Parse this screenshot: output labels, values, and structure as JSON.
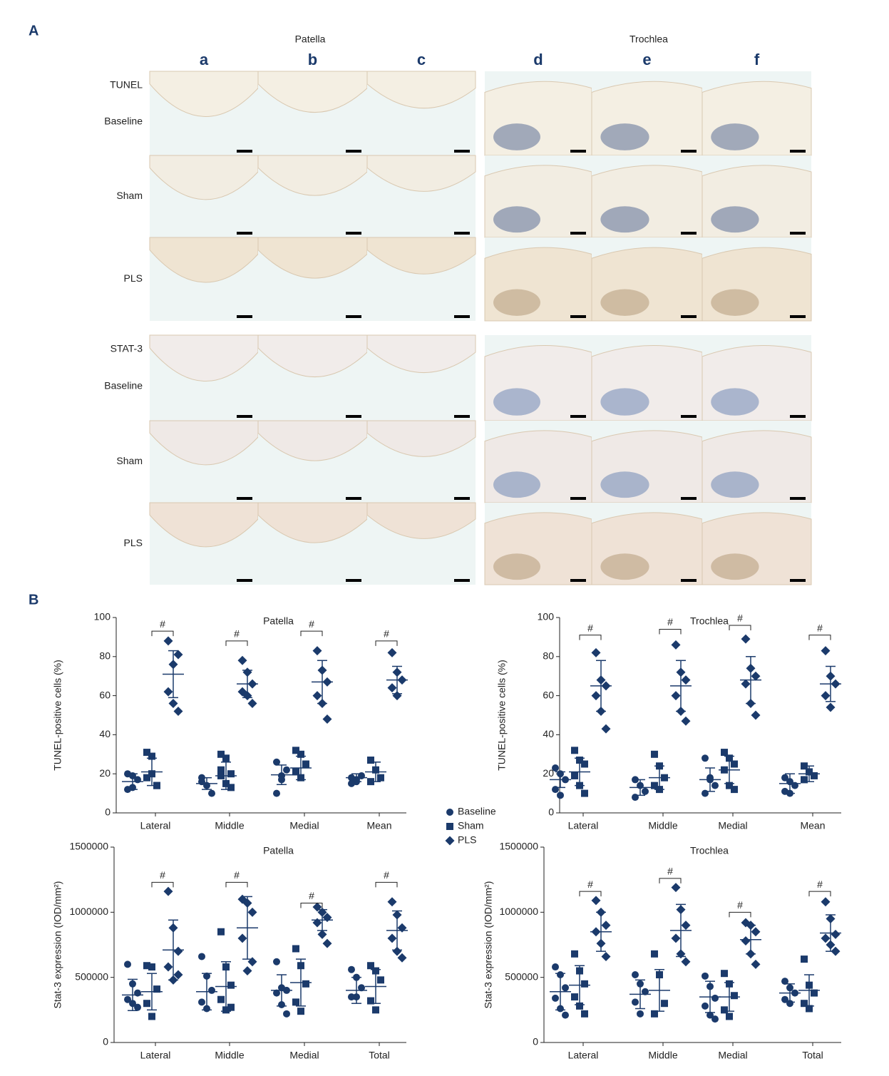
{
  "panel_a": {
    "label": "A",
    "groups": [
      {
        "title": "Patella",
        "columns": [
          "a",
          "b",
          "c"
        ]
      },
      {
        "title": "Trochlea",
        "columns": [
          "d",
          "e",
          "f"
        ]
      }
    ],
    "stains": [
      {
        "name": "TUNEL",
        "rows": [
          "Baseline",
          "Sham",
          "PLS"
        ]
      },
      {
        "name": "STAT-3",
        "rows": [
          "Baseline",
          "Sham",
          "PLS"
        ]
      }
    ]
  },
  "panel_b": {
    "label": "B"
  },
  "chart_data": [
    {
      "type": "dot",
      "title": "Patella",
      "y_label": "TUNEL-positive cells (%)",
      "categories": [
        "Lateral",
        "Middle",
        "Medial",
        "Mean"
      ],
      "ylim": [
        0,
        100
      ],
      "yticks": [
        0,
        20,
        40,
        60,
        80,
        100
      ],
      "series": [
        {
          "name": "Baseline",
          "color": "#1b3a6b",
          "marker": "circle",
          "values": [
            [
              20,
              13,
              17,
              12,
              19
            ],
            [
              18,
              14,
              10,
              16
            ],
            [
              26,
              17,
              22,
              10,
              19
            ],
            [
              18,
              16,
              19,
              15,
              17
            ]
          ],
          "mean": [
            16,
            15,
            19.5,
            18
          ],
          "sd": [
            4,
            3,
            5,
            2
          ]
        },
        {
          "name": "Sham",
          "color": "#1b3a6b",
          "marker": "square",
          "values": [
            [
              31,
              29,
              14,
              18,
              20,
              14
            ],
            [
              30,
              28,
              20,
              22,
              15,
              13,
              19
            ],
            [
              32,
              30,
              25,
              21,
              18
            ],
            [
              27,
              22,
              18,
              16
            ]
          ],
          "mean": [
            21,
            19,
            23,
            21
          ],
          "sd": [
            7,
            7,
            6,
            5
          ]
        },
        {
          "name": "PLS",
          "color": "#1b3a6b",
          "marker": "diamond",
          "values": [
            [
              88,
              76,
              81,
              62,
              56,
              52
            ],
            [
              78,
              72,
              66,
              62,
              60,
              56
            ],
            [
              83,
              73,
              67,
              60,
              56,
              48
            ],
            [
              82,
              72,
              68,
              64,
              60
            ]
          ],
          "mean": [
            71,
            66,
            67,
            68
          ],
          "sd": [
            12,
            7,
            11,
            7
          ]
        }
      ],
      "significance": [
        {
          "category": "Lateral",
          "value": 93,
          "label": "#"
        },
        {
          "category": "Middle",
          "value": 88,
          "label": "#"
        },
        {
          "category": "Medial",
          "value": 93,
          "label": "#"
        },
        {
          "category": "Mean",
          "value": 88,
          "label": "#"
        }
      ]
    },
    {
      "type": "dot",
      "title": "Trochlea",
      "y_label": "TUNEL-positive cells (%)",
      "categories": [
        "Lateral",
        "Middle",
        "Medial",
        "Mean"
      ],
      "ylim": [
        0,
        100
      ],
      "yticks": [
        0,
        20,
        40,
        60,
        80,
        100
      ],
      "series": [
        {
          "name": "Baseline",
          "color": "#1b3a6b",
          "marker": "circle",
          "values": [
            [
              23,
              20,
              17,
              12,
              9
            ],
            [
              17,
              14,
              11,
              8
            ],
            [
              28,
              18,
              14,
              10,
              17
            ],
            [
              18,
              16,
              14,
              11,
              10
            ]
          ],
          "mean": [
            17,
            13,
            17,
            15
          ],
          "sd": [
            4,
            4,
            6,
            5
          ]
        },
        {
          "name": "Sham",
          "color": "#1b3a6b",
          "marker": "square",
          "values": [
            [
              32,
              27,
              25,
              19,
              14,
              10
            ],
            [
              30,
              24,
              18,
              14,
              12
            ],
            [
              31,
              28,
              25,
              22,
              14,
              12
            ],
            [
              24,
              21,
              19,
              17
            ]
          ],
          "mean": [
            21,
            18,
            22,
            20
          ],
          "sd": [
            7,
            6,
            7,
            4
          ]
        },
        {
          "name": "PLS",
          "color": "#1b3a6b",
          "marker": "diamond",
          "values": [
            [
              82,
              68,
              65,
              60,
              52,
              43
            ],
            [
              86,
              72,
              68,
              60,
              52,
              47
            ],
            [
              89,
              74,
              70,
              66,
              56,
              50
            ],
            [
              83,
              70,
              66,
              60,
              54
            ]
          ],
          "mean": [
            65,
            65,
            68,
            66
          ],
          "sd": [
            13,
            13,
            12,
            9
          ]
        }
      ],
      "significance": [
        {
          "category": "Lateral",
          "value": 91,
          "label": "#"
        },
        {
          "category": "Middle",
          "value": 94,
          "label": "#"
        },
        {
          "category": "Medial",
          "value": 96,
          "label": "#"
        },
        {
          "category": "Mean",
          "value": 91,
          "label": "#"
        }
      ]
    },
    {
      "type": "dot",
      "title": "Patella",
      "y_label": "Stat-3 expression (IOD/mm²)",
      "categories": [
        "Lateral",
        "Middle",
        "Medial",
        "Total"
      ],
      "ylim": [
        0,
        1500000
      ],
      "yticks": [
        0,
        500000,
        1000000,
        1500000
      ],
      "series": [
        {
          "name": "Baseline",
          "color": "#1b3a6b",
          "marker": "circle",
          "values": [
            [
              600000,
              450000,
              380000,
              330000,
              300000,
              270000
            ],
            [
              660000,
              510000,
              400000,
              310000,
              260000
            ],
            [
              620000,
              420000,
              400000,
              380000,
              290000,
              220000
            ],
            [
              560000,
              500000,
              420000,
              350000,
              350000
            ]
          ],
          "mean": [
            365000,
            390000,
            400000,
            400000
          ],
          "sd": [
            120000,
            140000,
            120000,
            100000
          ]
        },
        {
          "name": "Sham",
          "color": "#1b3a6b",
          "marker": "square",
          "values": [
            [
              590000,
              580000,
              410000,
              300000,
              200000
            ],
            [
              850000,
              580000,
              440000,
              330000,
              250000,
              270000
            ],
            [
              720000,
              590000,
              450000,
              310000,
              240000
            ],
            [
              590000,
              550000,
              480000,
              320000,
              250000
            ]
          ],
          "mean": [
            390000,
            430000,
            460000,
            430000
          ],
          "sd": [
            140000,
            190000,
            180000,
            130000
          ]
        },
        {
          "name": "PLS",
          "color": "#1b3a6b",
          "marker": "diamond",
          "values": [
            [
              1160000,
              880000,
              700000,
              580000,
              480000,
              520000
            ],
            [
              1100000,
              1070000,
              1000000,
              800000,
              550000,
              620000
            ],
            [
              1040000,
              1000000,
              960000,
              920000,
              830000,
              760000
            ],
            [
              1080000,
              980000,
              880000,
              800000,
              700000,
              650000
            ]
          ],
          "mean": [
            710000,
            880000,
            940000,
            860000
          ],
          "sd": [
            230000,
            240000,
            80000,
            150000
          ]
        }
      ],
      "significance": [
        {
          "category": "Lateral",
          "value": 1230000,
          "label": "#"
        },
        {
          "category": "Middle",
          "value": 1230000,
          "label": "#"
        },
        {
          "category": "Medial",
          "value": 1070000,
          "label": "#"
        },
        {
          "category": "Total",
          "value": 1230000,
          "label": "#"
        }
      ]
    },
    {
      "type": "dot",
      "title": "Trochlea",
      "y_label": "Stat-3 expression (IOD/mm²)",
      "categories": [
        "Lateral",
        "Middle",
        "Medial",
        "Total"
      ],
      "ylim": [
        0,
        1500000
      ],
      "yticks": [
        0,
        500000,
        1000000,
        1500000
      ],
      "series": [
        {
          "name": "Baseline",
          "color": "#1b3a6b",
          "marker": "circle",
          "values": [
            [
              580000,
              520000,
              420000,
              340000,
              260000,
              210000
            ],
            [
              520000,
              450000,
              390000,
              310000,
              220000
            ],
            [
              510000,
              430000,
              340000,
              280000,
              210000,
              180000
            ],
            [
              470000,
              420000,
              380000,
              330000,
              300000
            ]
          ],
          "mean": [
            390000,
            370000,
            350000,
            380000
          ],
          "sd": [
            140000,
            110000,
            120000,
            70000
          ]
        },
        {
          "name": "Sham",
          "color": "#1b3a6b",
          "marker": "square",
          "values": [
            [
              680000,
              550000,
              450000,
              350000,
              280000,
              220000
            ],
            [
              680000,
              520000,
              300000,
              220000
            ],
            [
              530000,
              450000,
              360000,
              250000,
              200000
            ],
            [
              640000,
              440000,
              380000,
              300000,
              260000
            ]
          ],
          "mean": [
            440000,
            400000,
            350000,
            400000
          ],
          "sd": [
            150000,
            160000,
            110000,
            120000
          ]
        },
        {
          "name": "PLS",
          "color": "#1b3a6b",
          "marker": "diamond",
          "values": [
            [
              1090000,
              1000000,
              900000,
              850000,
              760000,
              660000
            ],
            [
              1190000,
              1020000,
              900000,
              800000,
              680000,
              620000
            ],
            [
              920000,
              900000,
              850000,
              780000,
              680000,
              600000
            ],
            [
              1080000,
              950000,
              830000,
              800000,
              750000,
              700000
            ]
          ],
          "mean": [
            850000,
            860000,
            790000,
            840000
          ],
          "sd": [
            150000,
            200000,
            110000,
            140000
          ]
        }
      ],
      "significance": [
        {
          "category": "Lateral",
          "value": 1160000,
          "label": "#"
        },
        {
          "category": "Middle",
          "value": 1260000,
          "label": "#"
        },
        {
          "category": "Medial",
          "value": 1000000,
          "label": "#"
        },
        {
          "category": "Total",
          "value": 1160000,
          "label": "#"
        }
      ]
    }
  ]
}
